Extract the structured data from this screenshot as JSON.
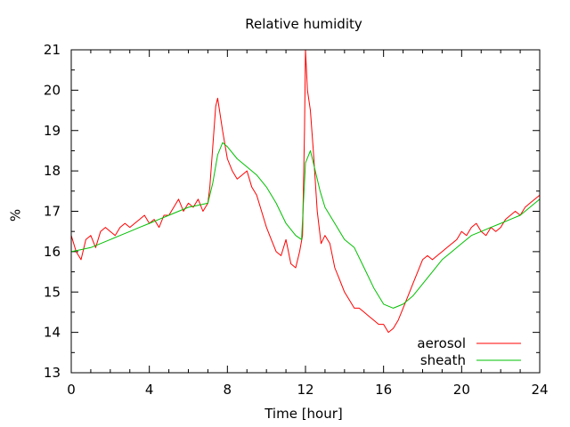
{
  "chart_data": {
    "type": "line",
    "title": "Relative humidity",
    "xlabel": "Time [hour]",
    "ylabel": "%",
    "xlim": [
      0,
      24
    ],
    "ylim": [
      13,
      21
    ],
    "xticks": [
      0,
      4,
      8,
      12,
      16,
      20,
      24
    ],
    "yticks": [
      13,
      14,
      15,
      16,
      17,
      18,
      19,
      20,
      21
    ],
    "grid": false,
    "legend": "bottom-right",
    "series": [
      {
        "name": "aerosol",
        "color": "#ff0000",
        "x": [
          0,
          0.25,
          0.5,
          0.75,
          1,
          1.25,
          1.5,
          1.75,
          2,
          2.25,
          2.5,
          2.75,
          3,
          3.25,
          3.5,
          3.75,
          4,
          4.25,
          4.5,
          4.75,
          5,
          5.25,
          5.5,
          5.75,
          6,
          6.25,
          6.5,
          6.75,
          7,
          7.1,
          7.25,
          7.4,
          7.5,
          7.75,
          8,
          8.25,
          8.5,
          8.75,
          9,
          9.25,
          9.5,
          9.75,
          10,
          10.25,
          10.5,
          10.75,
          11,
          11.25,
          11.5,
          11.7,
          11.85,
          11.95,
          12,
          12.1,
          12.25,
          12.4,
          12.6,
          12.8,
          13,
          13.25,
          13.5,
          13.75,
          14,
          14.25,
          14.5,
          14.75,
          15,
          15.25,
          15.5,
          15.75,
          16,
          16.25,
          16.5,
          16.75,
          17,
          17.25,
          17.5,
          17.75,
          18,
          18.25,
          18.5,
          18.75,
          19,
          19.25,
          19.5,
          19.75,
          20,
          20.25,
          20.5,
          20.75,
          21,
          21.25,
          21.5,
          21.75,
          22,
          22.25,
          22.5,
          22.75,
          23,
          23.25,
          23.5,
          23.75,
          24
        ],
        "values": [
          16.4,
          16.0,
          15.8,
          16.3,
          16.4,
          16.1,
          16.5,
          16.6,
          16.5,
          16.4,
          16.6,
          16.7,
          16.6,
          16.7,
          16.8,
          16.9,
          16.7,
          16.8,
          16.6,
          16.9,
          16.9,
          17.1,
          17.3,
          17.0,
          17.2,
          17.1,
          17.3,
          17.0,
          17.2,
          17.6,
          18.6,
          19.6,
          19.8,
          19.0,
          18.3,
          18.0,
          17.8,
          17.9,
          18.0,
          17.6,
          17.4,
          17.0,
          16.6,
          16.3,
          16.0,
          15.9,
          16.3,
          15.7,
          15.6,
          16.0,
          16.4,
          19.0,
          21.0,
          20.0,
          19.5,
          18.5,
          17.0,
          16.2,
          16.4,
          16.2,
          15.6,
          15.3,
          15.0,
          14.8,
          14.6,
          14.6,
          14.5,
          14.4,
          14.3,
          14.2,
          14.2,
          14.0,
          14.1,
          14.3,
          14.6,
          14.9,
          15.2,
          15.5,
          15.8,
          15.9,
          15.8,
          15.9,
          16.0,
          16.1,
          16.2,
          16.3,
          16.5,
          16.4,
          16.6,
          16.7,
          16.5,
          16.4,
          16.6,
          16.5,
          16.6,
          16.8,
          16.9,
          17.0,
          16.9,
          17.1,
          17.2,
          17.3,
          17.4
        ]
      },
      {
        "name": "sheath",
        "color": "#00c000",
        "x": [
          0,
          0.5,
          1,
          1.5,
          2,
          2.5,
          3,
          3.5,
          4,
          4.5,
          5,
          5.5,
          6,
          6.5,
          7,
          7.25,
          7.5,
          7.75,
          8,
          8.5,
          9,
          9.5,
          10,
          10.5,
          11,
          11.5,
          11.8,
          12,
          12.25,
          12.5,
          12.75,
          13,
          13.5,
          14,
          14.5,
          15,
          15.5,
          16,
          16.5,
          17,
          17.5,
          18,
          18.5,
          19,
          19.5,
          20,
          20.5,
          21,
          21.5,
          22,
          22.5,
          23,
          23.5,
          24
        ],
        "values": [
          16.0,
          16.05,
          16.1,
          16.2,
          16.3,
          16.4,
          16.5,
          16.6,
          16.7,
          16.8,
          16.9,
          17.0,
          17.1,
          17.15,
          17.2,
          17.7,
          18.4,
          18.7,
          18.6,
          18.3,
          18.1,
          17.9,
          17.6,
          17.2,
          16.7,
          16.4,
          16.3,
          18.2,
          18.5,
          18.0,
          17.5,
          17.1,
          16.7,
          16.3,
          16.1,
          15.6,
          15.1,
          14.7,
          14.6,
          14.7,
          14.9,
          15.2,
          15.5,
          15.8,
          16.0,
          16.2,
          16.4,
          16.5,
          16.6,
          16.7,
          16.8,
          16.9,
          17.1,
          17.3
        ]
      }
    ]
  }
}
